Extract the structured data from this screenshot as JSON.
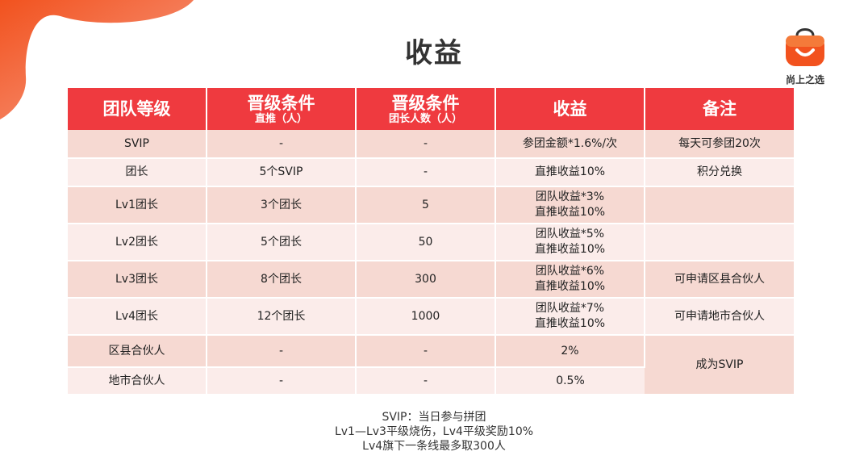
{
  "title": "收益",
  "logo": {
    "text": "尚上之选"
  },
  "colors": {
    "header": "#ef3a3f",
    "row_odd": "#f6d9d2",
    "row_even": "#fbecea",
    "blob": "#f2521e"
  },
  "table": {
    "headers": [
      {
        "main": "团队等级",
        "sub": ""
      },
      {
        "main": "晋级条件",
        "sub": "直推（人）"
      },
      {
        "main": "晋级条件",
        "sub": "团长人数（人）"
      },
      {
        "main": "收益",
        "sub": ""
      },
      {
        "main": "备注",
        "sub": ""
      }
    ],
    "rows": [
      {
        "level": "SVIP",
        "direct": "-",
        "leaders": "-",
        "income": [
          "参团金额*1.6%/次"
        ],
        "note": "每天可参团20次"
      },
      {
        "level": "团长",
        "direct": "5个SVIP",
        "leaders": "-",
        "income": [
          "直推收益10%"
        ],
        "note": "积分兑换"
      },
      {
        "level": "Lv1团长",
        "direct": "3个团长",
        "leaders": "5",
        "income": [
          "团队收益*3%",
          "直推收益10%"
        ],
        "note": ""
      },
      {
        "level": "Lv2团长",
        "direct": "5个团长",
        "leaders": "50",
        "income": [
          "团队收益*5%",
          "直推收益10%"
        ],
        "note": ""
      },
      {
        "level": "Lv3团长",
        "direct": "8个团长",
        "leaders": "300",
        "income": [
          "团队收益*6%",
          "直推收益10%"
        ],
        "note": "可申请区县合伙人"
      },
      {
        "level": "Lv4团长",
        "direct": "12个团长",
        "leaders": "1000",
        "income": [
          "团队收益*7%",
          "直推收益10%"
        ],
        "note": "可申请地市合伙人"
      },
      {
        "level": "区县合伙人",
        "direct": "-",
        "leaders": "-",
        "income": [
          "2%"
        ],
        "note": "成为SVIP"
      },
      {
        "level": "地市合伙人",
        "direct": "-",
        "leaders": "-",
        "income": [
          "0.5%"
        ],
        "note": ""
      }
    ]
  },
  "footnotes": [
    "SVIP：当日参与拼团",
    "Lv1—Lv3平级烧伤，Lv4平级奖励10%",
    "Lv4旗下一条线最多取300人"
  ]
}
